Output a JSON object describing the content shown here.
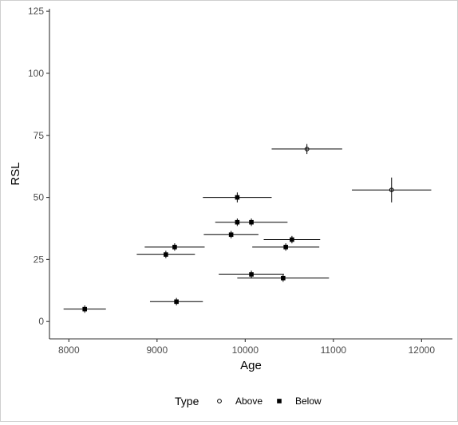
{
  "chart_data": {
    "type": "scatter",
    "xlabel": "Age",
    "ylabel": "RSL",
    "xlim": [
      7780,
      12350
    ],
    "ylim": [
      -7,
      126
    ],
    "x_ticks": [
      8000,
      9000,
      10000,
      11000,
      12000
    ],
    "y_ticks": [
      0,
      25,
      50,
      75,
      100,
      125
    ],
    "grid": false,
    "legend": {
      "title": "Type",
      "position": "bottom",
      "entries": [
        {
          "label": "Above",
          "marker": "open-circle"
        },
        {
          "label": "Below",
          "marker": "filled-square"
        }
      ]
    },
    "series": [
      {
        "name": "Above",
        "marker": "open-circle",
        "points": [
          {
            "x": 10700,
            "y": 69.5,
            "x_err": 400,
            "y_err": 2
          },
          {
            "x": 11660,
            "y": 53,
            "x_err": 450,
            "y_err": 5
          }
        ]
      },
      {
        "name": "Below",
        "marker": "filled-square",
        "points": [
          {
            "x": 8180,
            "y": 5,
            "x_err": 240,
            "y_err": 1.5
          },
          {
            "x": 9220,
            "y": 8,
            "x_err": 300,
            "y_err": 1.5
          },
          {
            "x": 9100,
            "y": 27,
            "x_err": 330,
            "y_err": 1.5
          },
          {
            "x": 9200,
            "y": 30,
            "x_err": 340,
            "y_err": 1.5
          },
          {
            "x": 9840,
            "y": 35,
            "x_err": 310,
            "y_err": 1.5
          },
          {
            "x": 9910,
            "y": 40,
            "x_err": 0,
            "y_err": 1.5
          },
          {
            "x": 10070,
            "y": 40,
            "x_err": 410,
            "y_err": 1.5
          },
          {
            "x": 9910,
            "y": 50,
            "x_err": 390,
            "y_err": 2
          },
          {
            "x": 10530,
            "y": 33,
            "x_err": 320,
            "y_err": 1.5
          },
          {
            "x": 10460,
            "y": 30,
            "x_err": 380,
            "y_err": 1.5
          },
          {
            "x": 10070,
            "y": 19,
            "x_err": 370,
            "y_err": 1.5
          },
          {
            "x": 10430,
            "y": 17.5,
            "x_err": 520,
            "y_err": 1.5
          }
        ]
      }
    ]
  },
  "colors": {
    "axis": "#333333",
    "marker": "#000000",
    "errorbar": "#000000"
  }
}
